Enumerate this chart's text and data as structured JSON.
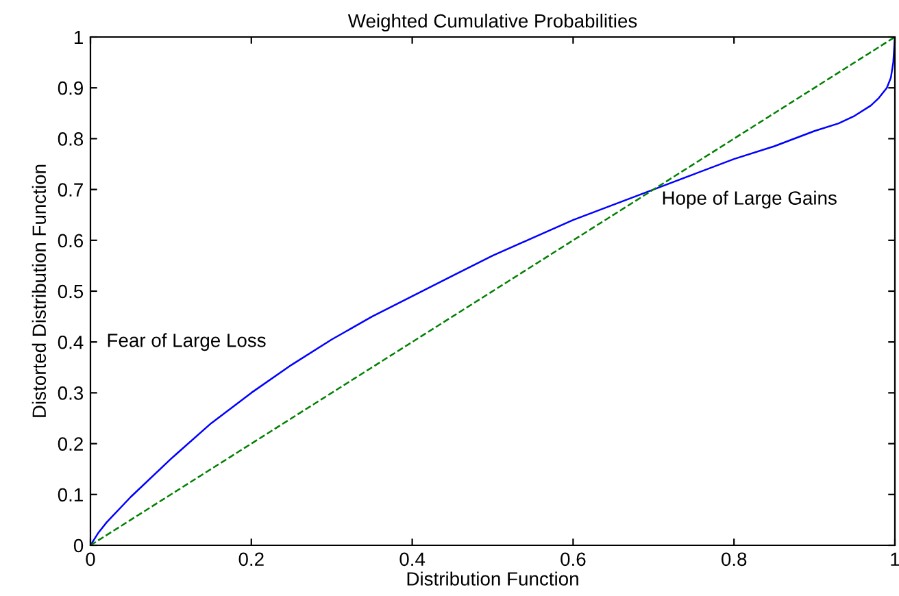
{
  "chart_data": {
    "type": "line",
    "title": "Weighted Cumulative Probabilities",
    "xlabel": "Distribution Function",
    "ylabel": "Distorted Distribution Function",
    "series": [
      {
        "color": "#0000ff",
        "line_style": "solid",
        "x": [
          0,
          0.01,
          0.02,
          0.05,
          0.1,
          0.15,
          0.2,
          0.25,
          0.3,
          0.35,
          0.4,
          0.45,
          0.5,
          0.55,
          0.6,
          0.65,
          0.7,
          0.75,
          0.8,
          0.85,
          0.9,
          0.93,
          0.95,
          0.97,
          0.98,
          0.99,
          0.995,
          0.998,
          1
        ],
        "values": [
          0,
          0.025,
          0.045,
          0.095,
          0.17,
          0.24,
          0.3,
          0.355,
          0.405,
          0.45,
          0.49,
          0.53,
          0.57,
          0.605,
          0.64,
          0.67,
          0.7,
          0.73,
          0.76,
          0.785,
          0.815,
          0.83,
          0.845,
          0.865,
          0.88,
          0.9,
          0.92,
          0.95,
          1
        ]
      },
      {
        "color": "#008000",
        "line_style": "dashed",
        "x": [
          0,
          1
        ],
        "values": [
          0,
          1
        ]
      }
    ],
    "xlim": [
      0,
      1
    ],
    "ylim": [
      0,
      1
    ],
    "xticks": [
      0,
      0.2,
      0.4,
      0.6,
      0.8,
      1
    ],
    "yticks": [
      0,
      0.1,
      0.2,
      0.3,
      0.4,
      0.5,
      0.6,
      0.7,
      0.8,
      0.9,
      1
    ],
    "annotations": [
      "Fear of Large Loss",
      "Hope of Large Gains"
    ],
    "grid": false,
    "legend": false
  }
}
